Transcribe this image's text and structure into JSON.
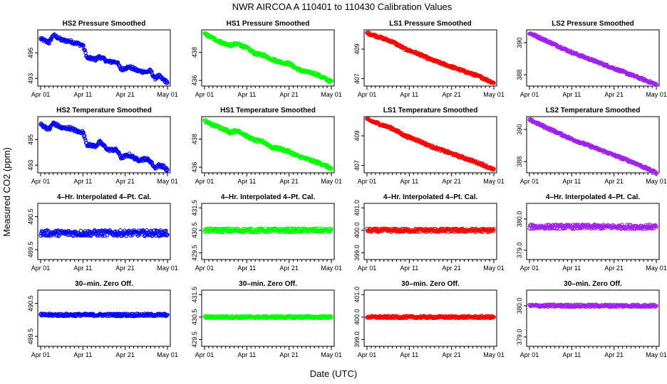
{
  "title": "NWR   AIRCOA A   110401 to 110430   Calibration Values",
  "ylabel": "Measured CO2 (ppm)",
  "xlabel": "Date (UTC)",
  "colors": {
    "HS2": "#0000ff",
    "HS1": "#00ff00",
    "LS1": "#ff0000",
    "LS2": "#a020f0"
  },
  "chart_data": [
    {
      "type": "scatter",
      "title": "HS2 Pressure Smoothed",
      "color_key": "HS2",
      "x_range": [
        0,
        30
      ],
      "ylim": [
        492.4,
        496.8
      ],
      "yticks": [
        "493",
        "495"
      ],
      "yticks_values": [
        493,
        495
      ],
      "trend": [
        [
          0,
          496.1
        ],
        [
          2,
          495.8
        ],
        [
          3,
          496.4
        ],
        [
          5,
          496.0
        ],
        [
          7,
          495.9
        ],
        [
          9,
          495.7
        ],
        [
          10,
          495.6
        ],
        [
          11,
          494.6
        ],
        [
          13,
          494.5
        ],
        [
          14,
          494.7
        ],
        [
          16,
          494.3
        ],
        [
          18,
          494.3
        ],
        [
          19,
          493.7
        ],
        [
          21,
          493.9
        ],
        [
          23,
          493.6
        ],
        [
          25,
          493.5
        ],
        [
          26,
          493.6
        ],
        [
          27,
          493.0
        ],
        [
          28,
          493.2
        ],
        [
          29,
          492.9
        ],
        [
          30,
          492.7
        ]
      ],
      "noise": 0.12
    },
    {
      "type": "scatter",
      "title": "HS1 Pressure Smoothed",
      "color_key": "HS1",
      "x_range": [
        0,
        30
      ],
      "ylim": [
        435.6,
        439.6
      ],
      "yticks": [
        "436",
        "438"
      ],
      "yticks_values": [
        436,
        438
      ],
      "trend": [
        [
          0,
          439.3
        ],
        [
          2,
          439.0
        ],
        [
          4,
          438.7
        ],
        [
          6,
          438.5
        ],
        [
          8,
          438.6
        ],
        [
          10,
          438.3
        ],
        [
          12,
          437.9
        ],
        [
          14,
          437.8
        ],
        [
          16,
          437.5
        ],
        [
          18,
          437.3
        ],
        [
          20,
          437.2
        ],
        [
          22,
          436.8
        ],
        [
          24,
          436.6
        ],
        [
          26,
          436.5
        ],
        [
          28,
          436.2
        ],
        [
          30,
          435.9
        ]
      ],
      "noise": 0.1
    },
    {
      "type": "scatter",
      "title": "LS1 Pressure Smoothed",
      "color_key": "LS1",
      "x_range": [
        0,
        30
      ],
      "ylim": [
        406.5,
        410.3
      ],
      "yticks": [
        "407",
        "409"
      ],
      "yticks_values": [
        407,
        409
      ],
      "trend": [
        [
          0,
          410.1
        ],
        [
          3,
          409.8
        ],
        [
          6,
          409.5
        ],
        [
          9,
          409.0
        ],
        [
          12,
          408.7
        ],
        [
          15,
          408.3
        ],
        [
          18,
          408.0
        ],
        [
          21,
          407.7
        ],
        [
          24,
          407.4
        ],
        [
          27,
          407.1
        ],
        [
          30,
          406.7
        ]
      ],
      "noise": 0.08
    },
    {
      "type": "scatter",
      "title": "LS2 Pressure Smoothed",
      "color_key": "LS2",
      "x_range": [
        0,
        30
      ],
      "ylim": [
        387.3,
        390.8
      ],
      "yticks": [
        "388",
        "390"
      ],
      "yticks_values": [
        388,
        390
      ],
      "trend": [
        [
          0,
          390.6
        ],
        [
          5,
          390.0
        ],
        [
          10,
          389.4
        ],
        [
          15,
          388.9
        ],
        [
          20,
          388.4
        ],
        [
          25,
          387.9
        ],
        [
          30,
          387.4
        ]
      ],
      "noise": 0.07
    },
    {
      "type": "scatter",
      "title": "HS2 Temperature Smoothed",
      "color_key": "HS2",
      "x_range": [
        0,
        30
      ],
      "ylim": [
        492.4,
        496.8
      ],
      "yticks": [
        "493",
        "495"
      ],
      "yticks_values": [
        493,
        495
      ],
      "trend": [
        [
          0,
          496.2
        ],
        [
          2,
          495.8
        ],
        [
          3,
          496.3
        ],
        [
          5,
          495.9
        ],
        [
          7,
          495.9
        ],
        [
          9,
          495.6
        ],
        [
          10,
          495.6
        ],
        [
          11,
          494.6
        ],
        [
          13,
          494.5
        ],
        [
          14,
          494.8
        ],
        [
          16,
          494.2
        ],
        [
          18,
          494.2
        ],
        [
          19,
          493.6
        ],
        [
          21,
          493.8
        ],
        [
          23,
          493.4
        ],
        [
          25,
          493.5
        ],
        [
          26,
          493.3
        ],
        [
          27,
          492.8
        ],
        [
          28,
          493.0
        ],
        [
          29,
          492.9
        ],
        [
          30,
          492.6
        ]
      ],
      "noise": 0.12
    },
    {
      "type": "scatter",
      "title": "HS1 Temperature Smoothed",
      "color_key": "HS1",
      "x_range": [
        0,
        30
      ],
      "ylim": [
        435.6,
        439.6
      ],
      "yticks": [
        "436",
        "438"
      ],
      "yticks_values": [
        436,
        438
      ],
      "trend": [
        [
          0,
          439.3
        ],
        [
          2,
          439.0
        ],
        [
          4,
          438.8
        ],
        [
          6,
          438.5
        ],
        [
          8,
          438.6
        ],
        [
          10,
          438.2
        ],
        [
          12,
          437.9
        ],
        [
          14,
          437.8
        ],
        [
          16,
          437.4
        ],
        [
          18,
          437.3
        ],
        [
          20,
          437.1
        ],
        [
          22,
          436.8
        ],
        [
          24,
          436.6
        ],
        [
          26,
          436.4
        ],
        [
          28,
          436.2
        ],
        [
          30,
          435.9
        ]
      ],
      "noise": 0.1
    },
    {
      "type": "scatter",
      "title": "LS1 Temperature Smoothed",
      "color_key": "LS1",
      "x_range": [
        0,
        30
      ],
      "ylim": [
        406.5,
        410.3
      ],
      "yticks": [
        "407",
        "409"
      ],
      "yticks_values": [
        407,
        409
      ],
      "trend": [
        [
          0,
          410.1
        ],
        [
          3,
          409.8
        ],
        [
          6,
          409.5
        ],
        [
          9,
          409.0
        ],
        [
          12,
          408.7
        ],
        [
          15,
          408.3
        ],
        [
          18,
          408.0
        ],
        [
          21,
          407.7
        ],
        [
          24,
          407.4
        ],
        [
          27,
          407.1
        ],
        [
          30,
          406.7
        ]
      ],
      "noise": 0.08
    },
    {
      "type": "scatter",
      "title": "LS2 Temperature Smoothed",
      "color_key": "LS2",
      "x_range": [
        0,
        30
      ],
      "ylim": [
        387.3,
        390.8
      ],
      "yticks": [
        "388",
        "390"
      ],
      "yticks_values": [
        388,
        390
      ],
      "trend": [
        [
          0,
          390.6
        ],
        [
          5,
          390.0
        ],
        [
          10,
          389.4
        ],
        [
          15,
          388.9
        ],
        [
          20,
          388.4
        ],
        [
          25,
          387.9
        ],
        [
          30,
          387.3
        ]
      ],
      "noise": 0.07
    },
    {
      "type": "scatter",
      "title": "4–Hr. Interpolated 4–Pt. Cal.",
      "color_key": "HS2",
      "x_range": [
        0,
        30
      ],
      "ylim": [
        489.2,
        490.9
      ],
      "yticks": [
        "489.5",
        "490.5"
      ],
      "yticks_values": [
        489.5,
        490.5
      ],
      "trend": [
        [
          0,
          490.0
        ],
        [
          30,
          490.0
        ]
      ],
      "noise": 0.09
    },
    {
      "type": "scatter",
      "title": "4–Hr. Interpolated 4–Pt. Cal.",
      "color_key": "HS1",
      "x_range": [
        0,
        30
      ],
      "ylim": [
        429.2,
        431.7
      ],
      "yticks": [
        "429.5",
        "430.5",
        "431.5"
      ],
      "yticks_values": [
        429.5,
        430.5,
        431.5
      ],
      "trend": [
        [
          0,
          430.5
        ],
        [
          30,
          430.5
        ]
      ],
      "noise": 0.09
    },
    {
      "type": "scatter",
      "title": "4–Hr. Interpolated 4–Pt. Cal.",
      "color_key": "LS1",
      "x_range": [
        0,
        30
      ],
      "ylim": [
        398.7,
        401.2
      ],
      "yticks": [
        "399.0",
        "400.0",
        "401.0"
      ],
      "yticks_values": [
        399,
        400,
        401
      ],
      "trend": [
        [
          0,
          400.0
        ],
        [
          30,
          400.0
        ]
      ],
      "noise": 0.08
    },
    {
      "type": "scatter",
      "title": "4–Hr. Interpolated 4–Pt. Cal.",
      "color_key": "LS2",
      "x_range": [
        0,
        30
      ],
      "ylim": [
        378.7,
        380.5
      ],
      "yticks": [
        "379.0",
        "380.0"
      ],
      "yticks_values": [
        379,
        380
      ],
      "trend": [
        [
          0,
          379.75
        ],
        [
          30,
          379.75
        ]
      ],
      "noise": 0.07
    },
    {
      "type": "scatter",
      "title": "30–min. Zero Off.",
      "color_key": "HS2",
      "x_range": [
        0,
        30
      ],
      "ylim": [
        489.2,
        490.9
      ],
      "yticks": [
        "489.5",
        "490.5"
      ],
      "yticks_values": [
        489.5,
        490.5
      ],
      "trend": [
        [
          0,
          490.15
        ],
        [
          30,
          490.15
        ]
      ],
      "noise": 0.04
    },
    {
      "type": "scatter",
      "title": "30–min. Zero Off.",
      "color_key": "HS1",
      "x_range": [
        0,
        30
      ],
      "ylim": [
        429.2,
        431.7
      ],
      "yticks": [
        "429.5",
        "430.5",
        "431.5"
      ],
      "yticks_values": [
        429.5,
        430.5,
        431.5
      ],
      "trend": [
        [
          0,
          430.5
        ],
        [
          30,
          430.5
        ]
      ],
      "noise": 0.05
    },
    {
      "type": "scatter",
      "title": "30–min. Zero Off.",
      "color_key": "LS1",
      "x_range": [
        0,
        30
      ],
      "ylim": [
        398.7,
        401.2
      ],
      "yticks": [
        "399.0",
        "400.0",
        "401.0"
      ],
      "yticks_values": [
        399,
        400,
        401
      ],
      "trend": [
        [
          0,
          400.0
        ],
        [
          30,
          400.0
        ]
      ],
      "noise": 0.05
    },
    {
      "type": "scatter",
      "title": "30–min. Zero Off.",
      "color_key": "LS2",
      "x_range": [
        0,
        30
      ],
      "ylim": [
        378.7,
        380.5
      ],
      "yticks": [
        "379.0",
        "380.0"
      ],
      "yticks_values": [
        379,
        380
      ],
      "trend": [
        [
          0,
          380.0
        ],
        [
          30,
          380.0
        ]
      ],
      "noise": 0.04
    }
  ],
  "xticks": {
    "labels": [
      "Apr 01",
      "Apr 11",
      "Apr 21",
      "May 01"
    ],
    "values": [
      0,
      10,
      20,
      30
    ]
  }
}
